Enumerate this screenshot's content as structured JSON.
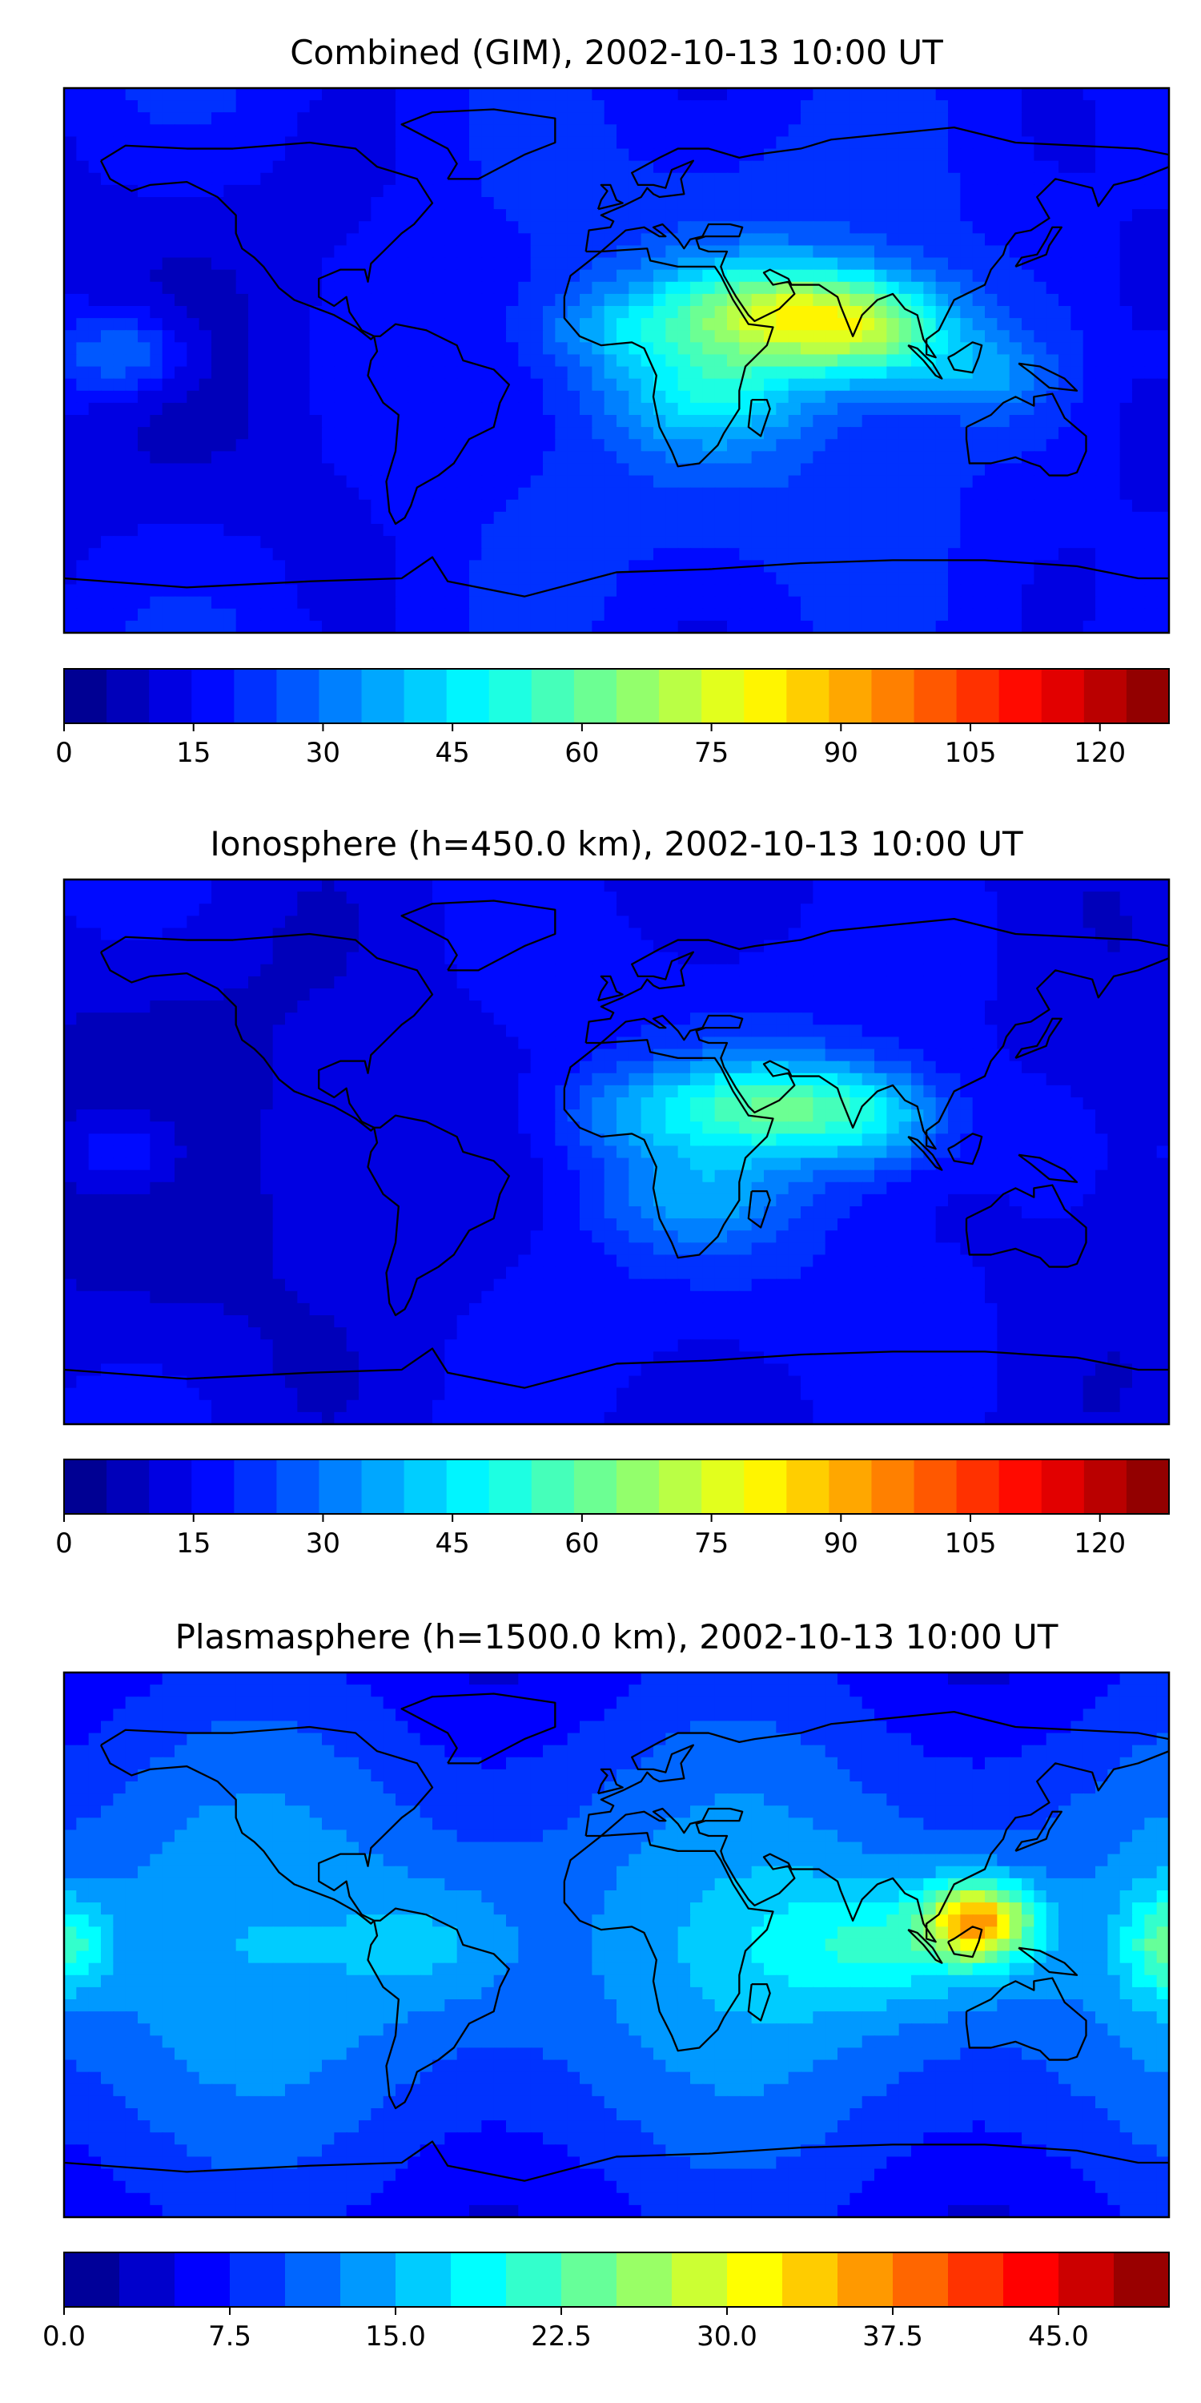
{
  "chart_data": [
    {
      "type": "heatmap",
      "title": "Combined (GIM), 2002-10-13 10:00 UT",
      "colorbar": {
        "min": 0,
        "max": 128,
        "levels": 26,
        "ticks": [
          0,
          15,
          30,
          45,
          60,
          75,
          90,
          105,
          120
        ],
        "tick_labels": [
          "0",
          "15",
          "30",
          "45",
          "60",
          "75",
          "90",
          "105",
          "120"
        ]
      },
      "blobs": [
        {
          "lon": 55,
          "lat": 15,
          "amp": 48,
          "sx": 28,
          "sy": 12
        },
        {
          "lon": 85,
          "lat": 8,
          "amp": 28,
          "sx": 18,
          "sy": 12
        },
        {
          "lon": 30,
          "lat": -12,
          "amp": 18,
          "sx": 22,
          "sy": 12
        },
        {
          "lon": -160,
          "lat": 2,
          "amp": 20,
          "sx": 15,
          "sy": 10
        },
        {
          "lon": -5,
          "lat": 10,
          "amp": 12,
          "sx": 18,
          "sy": 10
        },
        {
          "lon": 120,
          "lat": -5,
          "amp": 14,
          "sx": 15,
          "sy": 10
        }
      ]
    },
    {
      "type": "heatmap",
      "title": "Ionosphere  (h=450.0 km), 2002-10-13 10:00 UT",
      "colorbar": {
        "min": 0,
        "max": 128,
        "levels": 26,
        "ticks": [
          0,
          15,
          30,
          45,
          60,
          75,
          90,
          105,
          120
        ],
        "tick_labels": [
          "0",
          "15",
          "30",
          "45",
          "60",
          "75",
          "90",
          "105",
          "120"
        ]
      },
      "blobs": [
        {
          "lon": 50,
          "lat": 15,
          "amp": 35,
          "sx": 26,
          "sy": 11
        },
        {
          "lon": 85,
          "lat": 10,
          "amp": 20,
          "sx": 18,
          "sy": 12
        },
        {
          "lon": 25,
          "lat": -15,
          "amp": 14,
          "sx": 22,
          "sy": 12
        },
        {
          "lon": -160,
          "lat": 0,
          "amp": 14,
          "sx": 14,
          "sy": 10
        },
        {
          "lon": 0,
          "lat": 12,
          "amp": 10,
          "sx": 18,
          "sy": 10
        }
      ]
    },
    {
      "type": "heatmap",
      "title": "Plasmasphere (h=1500.0 km), 2002-10-13 10:00 UT",
      "colorbar": {
        "min": 0,
        "max": 50,
        "levels": 20,
        "ticks": [
          0,
          7.5,
          15,
          22.5,
          30,
          37.5,
          45
        ],
        "tick_labels": [
          "0.0",
          "7.5",
          "15.0",
          "22.5",
          "30.0",
          "37.5",
          "45.0"
        ]
      },
      "blobs": [
        {
          "lon": 118,
          "lat": 8,
          "amp": 22,
          "sx": 12,
          "sy": 9
        },
        {
          "lon": 90,
          "lat": 0,
          "amp": 8,
          "sx": 30,
          "sy": 15
        },
        {
          "lon": -180,
          "lat": 0,
          "amp": 10,
          "sx": 10,
          "sy": 12
        },
        {
          "lon": -60,
          "lat": 0,
          "amp": 4,
          "sx": 20,
          "sy": 15
        }
      ]
    }
  ]
}
